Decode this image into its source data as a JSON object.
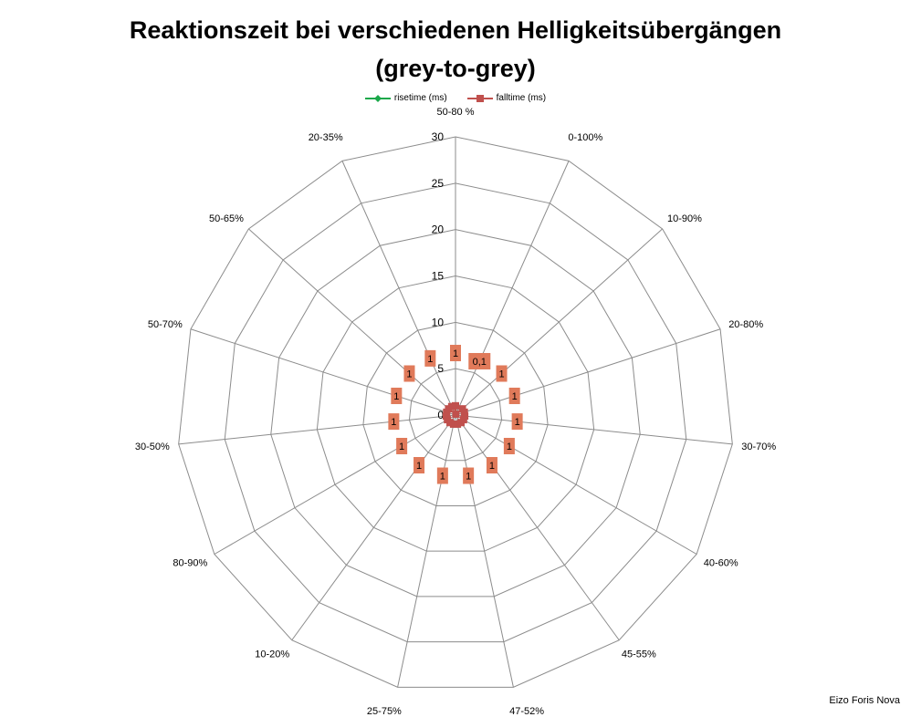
{
  "chart_data": {
    "type": "radar",
    "title_line1": "Reaktionszeit bei verschiedenen Helligkeitsübergängen",
    "title_line2": "(grey-to-grey)",
    "categories": [
      "50-80 %",
      "0-100%",
      "10-90%",
      "20-80%",
      "30-70%",
      "40-60%",
      "45-55%",
      "47-52%",
      "25-75%",
      "10-20%",
      "80-90%",
      "30-50%",
      "50-70%",
      "50-65%",
      "20-35%"
    ],
    "radial_ticks": [
      "0",
      "5",
      "10",
      "15",
      "20",
      "25",
      "30"
    ],
    "rlim": [
      0,
      30
    ],
    "series": [
      {
        "name": "risetime (ms)",
        "color": "#1aa84a",
        "marker": "diamond",
        "values": [
          1,
          0.1,
          1,
          1,
          1,
          1,
          1,
          1,
          1,
          1,
          1,
          1,
          1,
          1,
          1
        ]
      },
      {
        "name": "falltime (ms)",
        "color": "#c0504d",
        "marker": "square",
        "values": [
          1,
          0.1,
          1,
          1,
          1,
          1,
          1,
          1,
          1,
          1,
          1,
          1,
          1,
          1,
          1
        ]
      }
    ],
    "data_labels": [
      "1",
      "0,1",
      "1",
      "1",
      "1",
      "1",
      "1",
      "1",
      "1",
      "1",
      "1",
      "1",
      "1",
      "1",
      "1"
    ],
    "data_label_color": "#e07a5a",
    "grid": true,
    "legend_position": "top"
  },
  "credit": "Eizo Foris Nova"
}
